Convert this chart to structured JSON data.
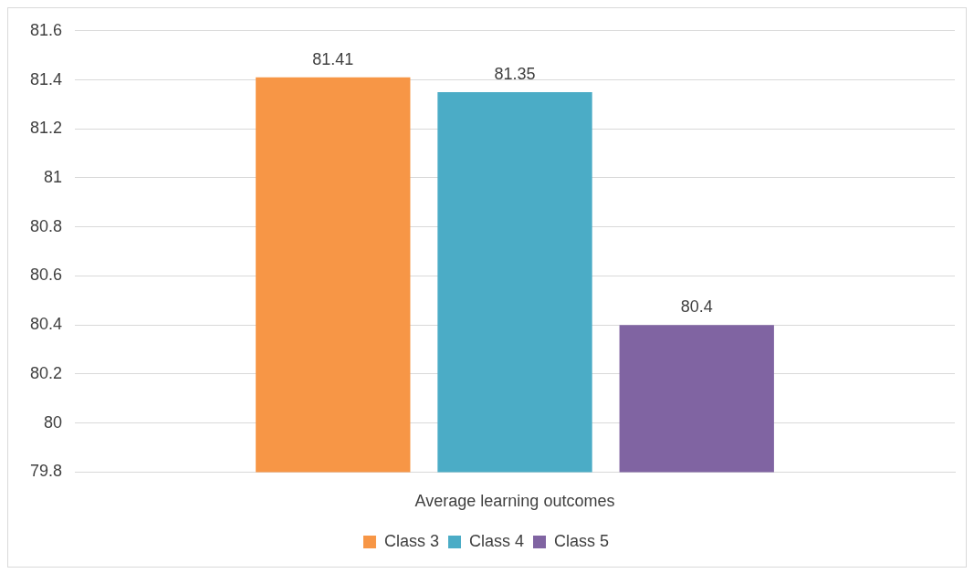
{
  "chart_data": {
    "type": "bar",
    "categories": [
      "Average learning outcomes"
    ],
    "series": [
      {
        "name": "Class 3",
        "color": "#f79646",
        "values": [
          81.41
        ]
      },
      {
        "name": "Class 4",
        "color": "#4bacc6",
        "values": [
          81.35
        ]
      },
      {
        "name": "Class 5",
        "color": "#8064a2",
        "values": [
          80.4
        ]
      }
    ],
    "ylim": [
      79.8,
      81.6
    ],
    "yticks": [
      79.8,
      80,
      80.2,
      80.4,
      80.6,
      80.8,
      81,
      81.2,
      81.4,
      81.6
    ],
    "grid": "y",
    "legend": "bottom",
    "data_labels": true
  }
}
